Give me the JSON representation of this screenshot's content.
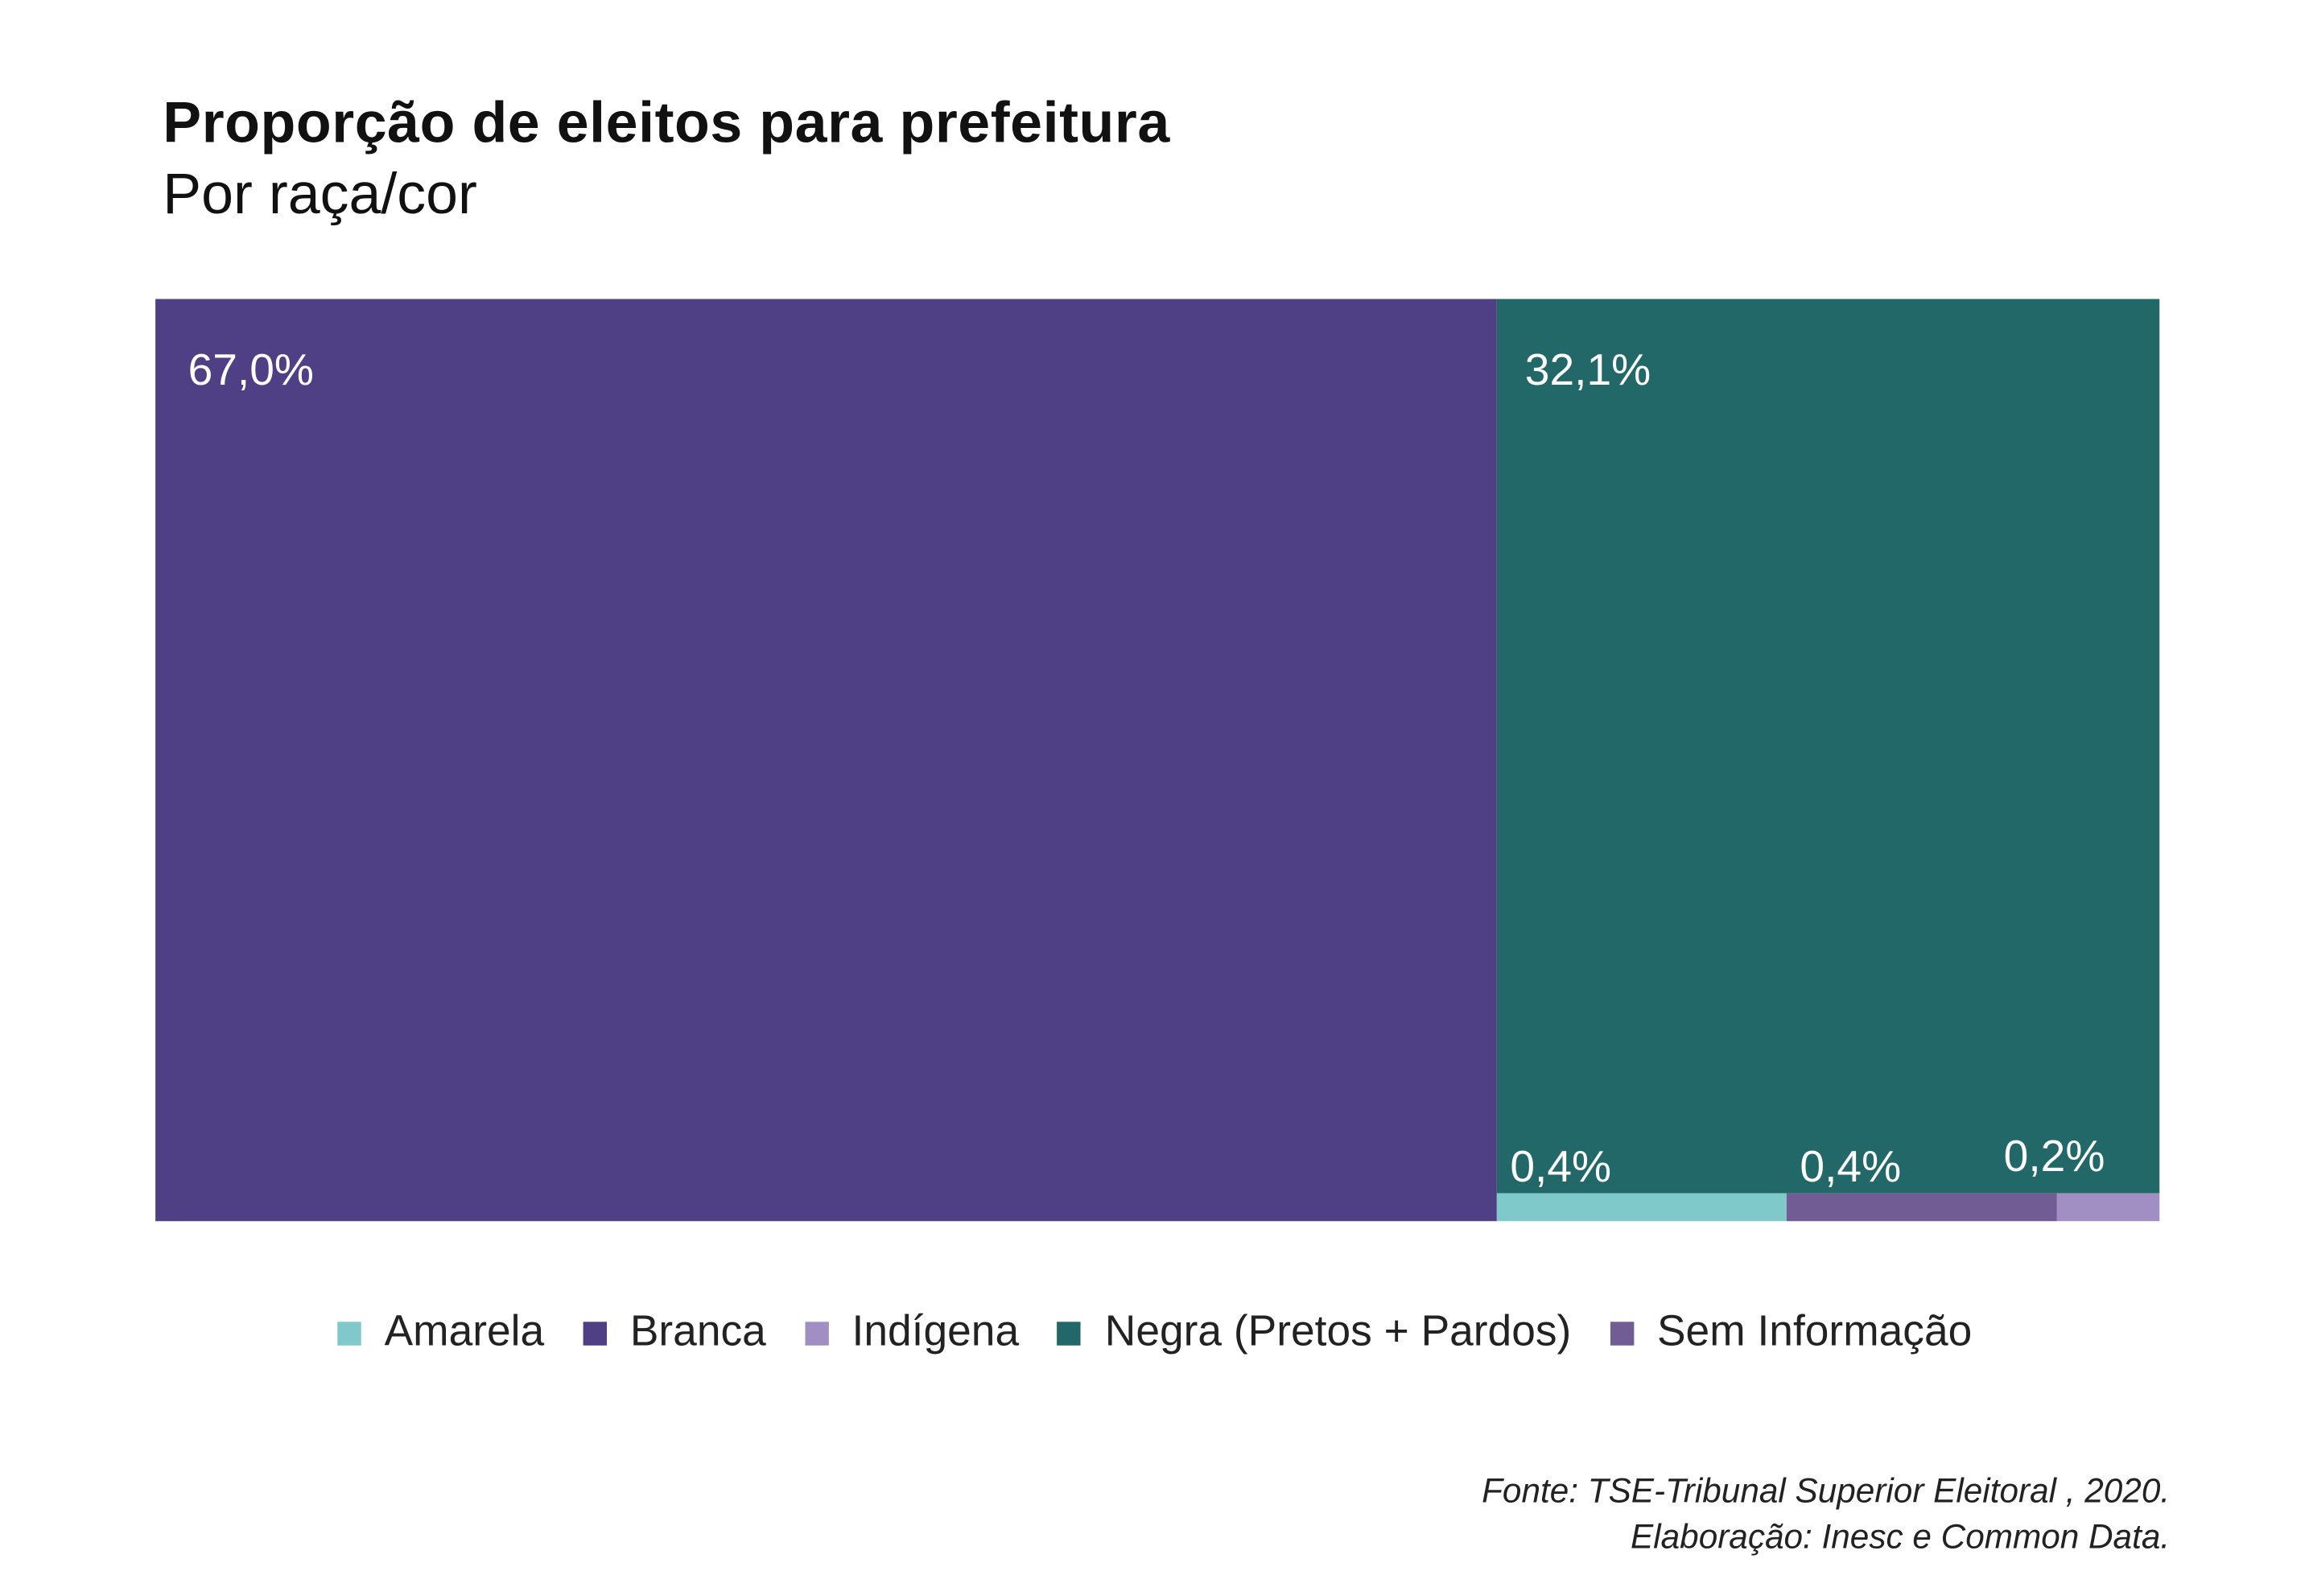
{
  "chart_data": {
    "type": "treemap",
    "title": "Proporção de eleitos para prefeitura",
    "subtitle": "Por raça/cor",
    "items": [
      {
        "name": "Branca",
        "value": 67.0,
        "label": "67,0%",
        "color": "#4f3f84"
      },
      {
        "name": "Negra (Pretos + Pardos)",
        "value": 32.1,
        "label": "32,1%",
        "color": "#226868"
      },
      {
        "name": "Amarela",
        "value": 0.4,
        "label": "0,4%",
        "color": "#7fc9ca"
      },
      {
        "name": "Sem Informação",
        "value": 0.4,
        "label": "0,4%",
        "color": "#715d93"
      },
      {
        "name": "Indígena",
        "value": 0.2,
        "label": "0,2%",
        "color": "#a18fc4"
      }
    ],
    "legend": {
      "placement": "bottom",
      "entries": [
        {
          "name": "Amarela",
          "color": "#7fc9ca"
        },
        {
          "name": "Branca",
          "color": "#4f3f84"
        },
        {
          "name": "Indígena",
          "color": "#a18fc4"
        },
        {
          "name": "Negra (Pretos + Pardos)",
          "color": "#226868"
        },
        {
          "name": "Sem Informação",
          "color": "#715d93"
        }
      ]
    },
    "source": [
      "Fonte: TSE-Tribunal Superior Eleitoral , 2020.",
      "Elaboração: Inesc e Common Data."
    ]
  }
}
